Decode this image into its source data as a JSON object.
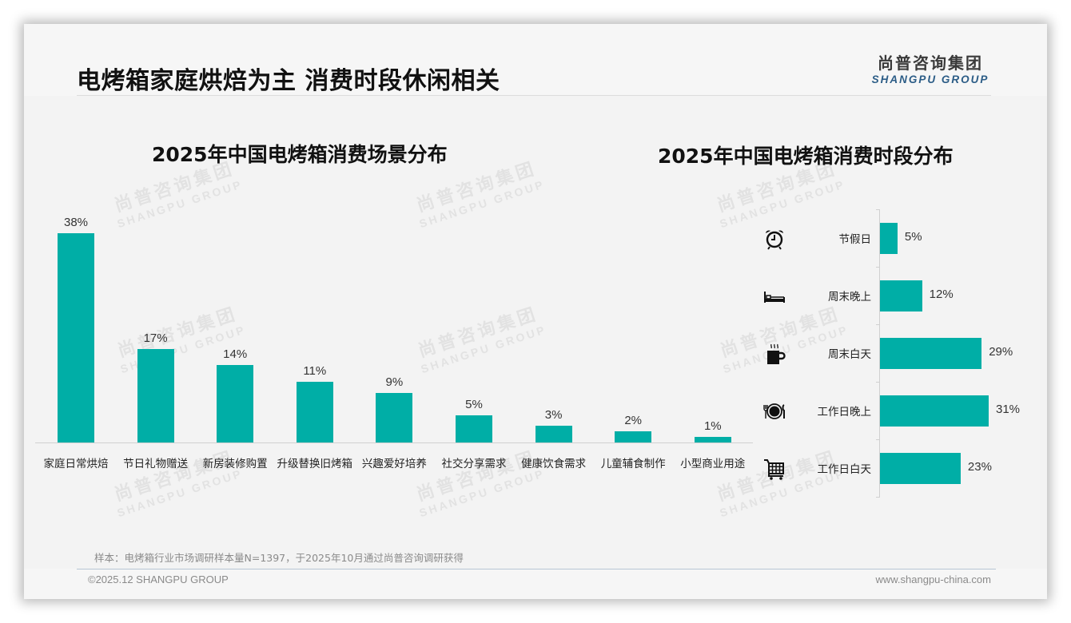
{
  "header": {
    "title": "电烤箱家庭烘焙为主 消费时段休闲相关",
    "logo_cn": "尚普咨询集团",
    "logo_en": "SHANGPU GROUP"
  },
  "watermark": {
    "cn": "尚普咨询集团",
    "en": "SHANGPU GROUP"
  },
  "left_chart": {
    "title": "2025年中国电烤箱消费场景分布",
    "bars": [
      {
        "label": "家庭日常烘焙",
        "value": 38,
        "display": "38%"
      },
      {
        "label": "节日礼物赠送",
        "value": 17,
        "display": "17%"
      },
      {
        "label": "新房装修购置",
        "value": 14,
        "display": "14%"
      },
      {
        "label": "升级替换旧烤箱",
        "value": 11,
        "display": "11%"
      },
      {
        "label": "兴趣爱好培养",
        "value": 9,
        "display": "9%"
      },
      {
        "label": "社交分享需求",
        "value": 5,
        "display": "5%"
      },
      {
        "label": "健康饮食需求",
        "value": 3,
        "display": "3%"
      },
      {
        "label": "儿童辅食制作",
        "value": 2,
        "display": "2%"
      },
      {
        "label": "小型商业用途",
        "value": 1,
        "display": "1%"
      }
    ]
  },
  "right_chart": {
    "title": "2025年中国电烤箱消费时段分布",
    "bars": [
      {
        "label": "节假日",
        "value": 5,
        "display": "5%",
        "icon": "alarm-clock-icon"
      },
      {
        "label": "周末晚上",
        "value": 12,
        "display": "12%",
        "icon": "bed-icon"
      },
      {
        "label": "周末白天",
        "value": 29,
        "display": "29%",
        "icon": "coffee-cup-icon"
      },
      {
        "label": "工作日晚上",
        "value": 31,
        "display": "31%",
        "icon": "dinner-plate-icon"
      },
      {
        "label": "工作日白天",
        "value": 23,
        "display": "23%",
        "icon": "shopping-cart-icon"
      }
    ]
  },
  "footer": {
    "note": "样本：电烤箱行业市场调研样本量N=1397，于2025年10月通过尚普咨询调研获得",
    "copyright": "©2025.12 SHANGPU GROUP",
    "website": "www.shangpu-china.com"
  },
  "colors": {
    "bar": "#00aea6",
    "logo_en": "#2b5c86",
    "background": "#f3f3f3"
  },
  "chart_data": [
    {
      "type": "bar",
      "title": "2025年中国电烤箱消费场景分布",
      "categories": [
        "家庭日常烘焙",
        "节日礼物赠送",
        "新房装修购置",
        "升级替换旧烤箱",
        "兴趣爱好培养",
        "社交分享需求",
        "健康饮食需求",
        "儿童辅食制作",
        "小型商业用途"
      ],
      "values": [
        38,
        17,
        14,
        11,
        9,
        5,
        3,
        2,
        1
      ],
      "unit": "%",
      "xlabel": "",
      "ylabel": "",
      "orientation": "vertical",
      "grid": false,
      "data_labels": true,
      "legend": "none"
    },
    {
      "type": "bar",
      "title": "2025年中国电烤箱消费时段分布",
      "categories": [
        "节假日",
        "周末晚上",
        "周末白天",
        "工作日晚上",
        "工作日白天"
      ],
      "values": [
        5,
        12,
        29,
        31,
        23
      ],
      "unit": "%",
      "xlabel": "",
      "ylabel": "",
      "orientation": "horizontal",
      "grid": false,
      "data_labels": true,
      "legend": "none"
    }
  ]
}
